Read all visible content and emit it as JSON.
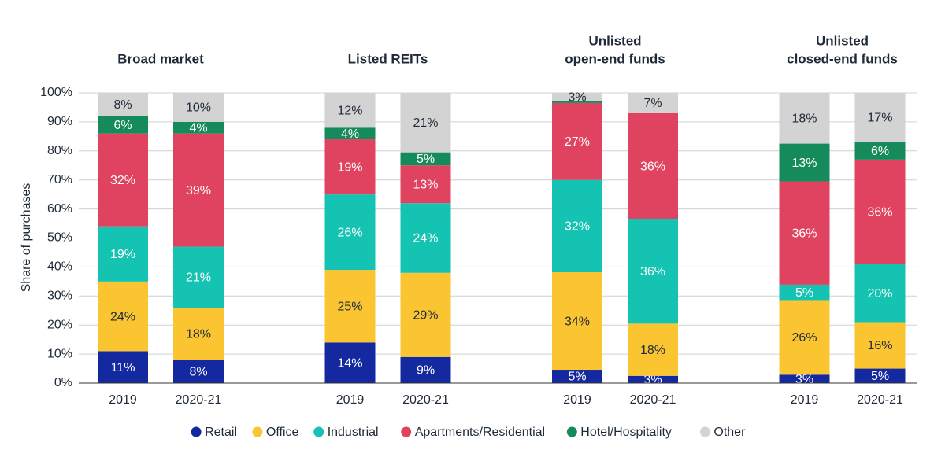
{
  "chart_data": {
    "type": "stacked_bar",
    "y_label": "Share of purchases",
    "group_titles": [
      [
        "Broad market"
      ],
      [
        "Listed REITs"
      ],
      [
        "Unlisted",
        "open-end funds"
      ],
      [
        "Unlisted",
        "closed-end funds"
      ]
    ],
    "categories": [
      "2019",
      "2020-21",
      "2019",
      "2020-21",
      "2019",
      "2020-21",
      "2019",
      "2020-21"
    ],
    "series": [
      {
        "name": "Retail",
        "color": "#1428a0",
        "values": [
          11,
          8,
          14,
          9,
          4.6,
          2.5,
          2.9,
          5
        ],
        "value_labels": [
          "11%",
          "8%",
          "14%",
          "9%",
          "5%",
          "3%",
          "3%",
          "5%"
        ]
      },
      {
        "name": "Office",
        "color": "#fbc531",
        "values": [
          24,
          18,
          25,
          29,
          33.6,
          18,
          25.7,
          16
        ],
        "value_labels": [
          "24%",
          "18%",
          "25%",
          "29%",
          "34%",
          "18%",
          "26%",
          "16%"
        ]
      },
      {
        "name": "Industrial",
        "color": "#14c3b1",
        "values": [
          19,
          21,
          26,
          24,
          31.8,
          36,
          5.3,
          20
        ],
        "value_labels": [
          "19%",
          "21%",
          "26%",
          "24%",
          "32%",
          "36%",
          "5%",
          "20%"
        ]
      },
      {
        "name": "Apartments/Residential",
        "color": "#e0435f",
        "values": [
          32,
          39,
          19,
          13,
          26.5,
          36.5,
          35.6,
          36
        ],
        "value_labels": [
          "32%",
          "39%",
          "19%",
          "13%",
          "27%",
          "36%",
          "36%",
          "36%"
        ]
      },
      {
        "name": "Hotel/Hospitality",
        "color": "#158a5a",
        "values": [
          6,
          4,
          4,
          4.5,
          0.7,
          0,
          13,
          6
        ],
        "value_labels": [
          "6%",
          "4%",
          "4%",
          "5%",
          null,
          null,
          "13%",
          "6%"
        ]
      },
      {
        "name": "Other",
        "color": "#d3d3d3",
        "values": [
          8,
          10,
          12,
          20.5,
          2.8,
          7,
          17.5,
          17
        ],
        "value_labels": [
          "8%",
          "10%",
          "12%",
          "21%",
          "3%",
          "7%",
          "18%",
          "17%"
        ]
      }
    ],
    "ylim": [
      0,
      100
    ],
    "yticks": [
      {
        "value": 0,
        "label": "0%"
      },
      {
        "value": 10,
        "label": "10%"
      },
      {
        "value": 20,
        "label": "20%"
      },
      {
        "value": 30,
        "label": "30%"
      },
      {
        "value": 40,
        "label": "40%"
      },
      {
        "value": 50,
        "label": "50%"
      },
      {
        "value": 60,
        "label": "60%"
      },
      {
        "value": 70,
        "label": "70%"
      },
      {
        "value": 80,
        "label": "80%"
      },
      {
        "value": 90,
        "label": "90%"
      },
      {
        "value": 100,
        "label": "100%"
      }
    ],
    "grid": true
  }
}
